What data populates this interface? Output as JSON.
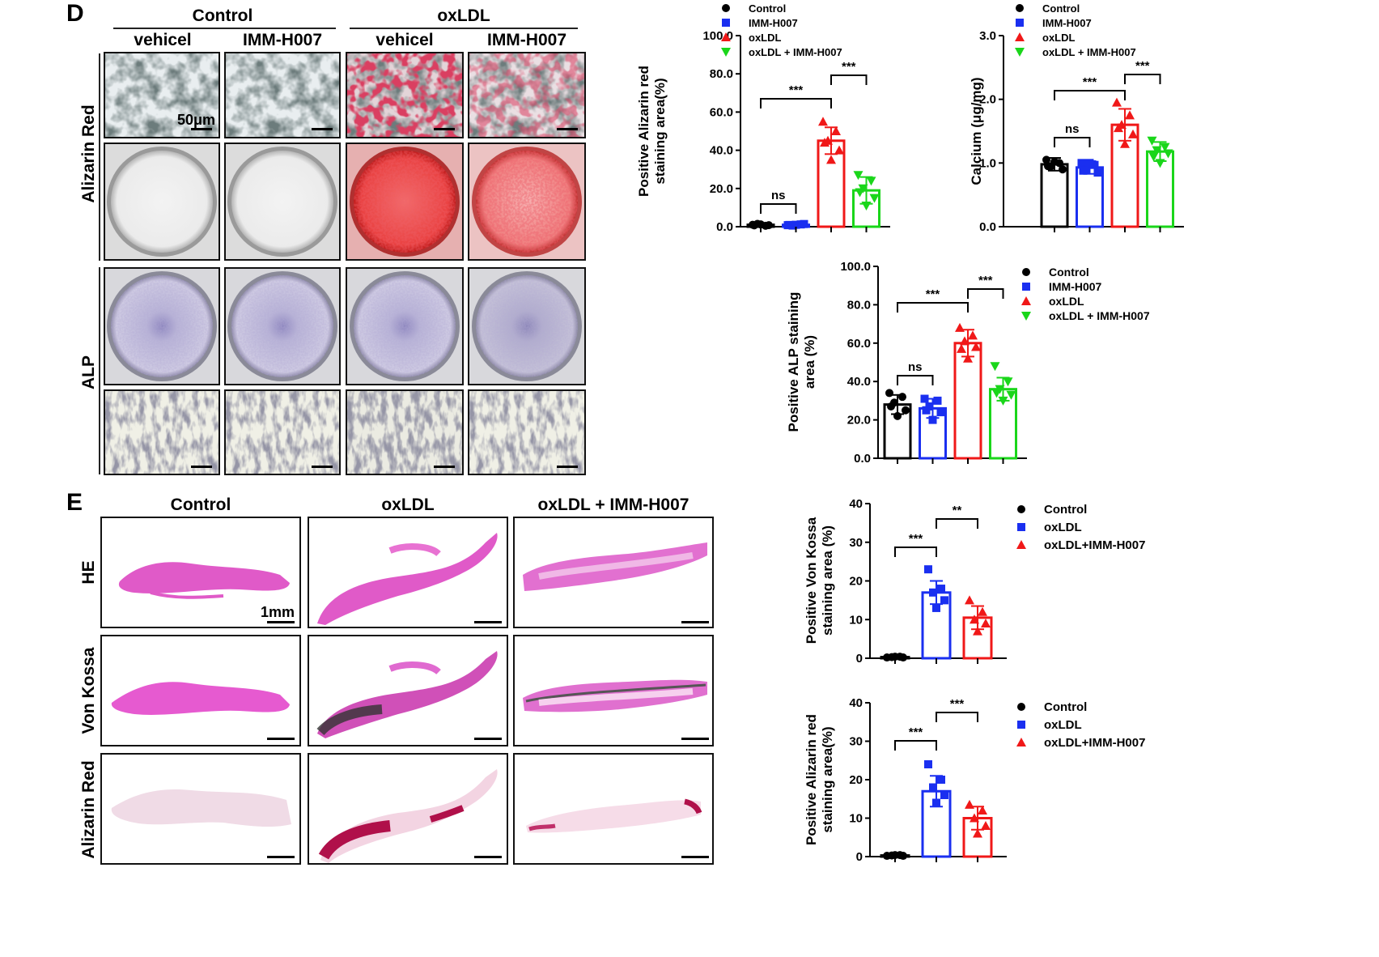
{
  "panel_d": {
    "letter": "D",
    "group_headers": [
      "Control",
      "oxLDL"
    ],
    "column_headers": [
      "vehicel",
      "IMM-H007",
      "vehicel",
      "IMM-H007"
    ],
    "row_labels": [
      "Alizarin Red",
      "ALP"
    ],
    "scale_bar": "50μm"
  },
  "panel_e": {
    "letter": "E",
    "column_headers": [
      "Control",
      "oxLDL",
      "oxLDL + IMM-H007"
    ],
    "row_labels": [
      "HE",
      "Von Kossa",
      "Alizarin Red"
    ],
    "scale_bar": "1mm"
  },
  "colors": {
    "black": "#000000",
    "blue": "#1a2ff0",
    "red": "#f01818",
    "green": "#1ad61a"
  },
  "chart_data": [
    {
      "id": "alizarin_cells",
      "type": "bar",
      "ylabel": [
        "Positive Alizarin red",
        "staining area(%)"
      ],
      "ylim": [
        0,
        100
      ],
      "yticks": [
        "0.0",
        "20.0",
        "40.0",
        "60.0",
        "80.0",
        "100.0"
      ],
      "series": [
        {
          "name": "Control",
          "value": 1,
          "sd": 0.6,
          "points": [
            1,
            0.5,
            1.5,
            0.8,
            1.2,
            0.7
          ]
        },
        {
          "name": "IMM-H007",
          "value": 1,
          "sd": 0.6,
          "points": [
            0.8,
            1.2,
            0.6,
            1.4,
            1.0,
            0.9
          ]
        },
        {
          "name": "oxLDL",
          "value": 45,
          "sd": 7,
          "points": [
            55,
            50,
            45,
            40,
            35,
            44
          ]
        },
        {
          "name": "oxLDL + IMM-H007",
          "value": 19,
          "sd": 7,
          "points": [
            27,
            24,
            20,
            15,
            11,
            18
          ]
        }
      ],
      "annotations": [
        "ns",
        "***",
        "***"
      ]
    },
    {
      "id": "calcium",
      "type": "bar",
      "ylabel": [
        "Calcium (μg/mg)"
      ],
      "ylim": [
        0,
        3
      ],
      "yticks": [
        "0.0",
        "1.0",
        "2.0",
        "3.0"
      ],
      "series": [
        {
          "name": "Control",
          "value": 0.98,
          "sd": 0.1,
          "points": [
            1.05,
            1.0,
            0.95,
            0.9,
            1.02,
            0.95
          ]
        },
        {
          "name": "IMM-H007",
          "value": 0.93,
          "sd": 0.1,
          "points": [
            1.0,
            0.97,
            0.9,
            0.85,
            1.0,
            0.88
          ]
        },
        {
          "name": "oxLDL",
          "value": 1.6,
          "sd": 0.25,
          "points": [
            1.95,
            1.75,
            1.6,
            1.45,
            1.3,
            1.55
          ]
        },
        {
          "name": "oxLDL + IMM-H007",
          "value": 1.18,
          "sd": 0.15,
          "points": [
            1.35,
            1.25,
            1.2,
            1.15,
            1.0,
            1.1
          ]
        }
      ],
      "annotations": [
        "ns",
        "***",
        "***"
      ]
    },
    {
      "id": "alp",
      "type": "bar",
      "ylabel": [
        "Positive ALP staining",
        "area (%)"
      ],
      "ylim": [
        0,
        100
      ],
      "yticks": [
        "0.0",
        "20.0",
        "40.0",
        "60.0",
        "80.0",
        "100.0"
      ],
      "series": [
        {
          "name": "Control",
          "value": 28,
          "sd": 5,
          "points": [
            34,
            32,
            29,
            25,
            22,
            27
          ]
        },
        {
          "name": "IMM-H007",
          "value": 26,
          "sd": 5,
          "points": [
            31,
            30,
            27,
            24,
            20,
            25
          ]
        },
        {
          "name": "oxLDL",
          "value": 60,
          "sd": 7,
          "points": [
            68,
            64,
            61,
            58,
            52,
            57
          ]
        },
        {
          "name": "oxLDL + IMM-H007",
          "value": 36,
          "sd": 6,
          "points": [
            48,
            40,
            36,
            33,
            30,
            34
          ]
        }
      ],
      "annotations": [
        "ns",
        "***",
        "***"
      ]
    },
    {
      "id": "vonkossa",
      "type": "bar",
      "ylabel": [
        "Positive Von Kossa",
        "staining area (%)"
      ],
      "ylim": [
        0,
        40
      ],
      "yticks": [
        "0",
        "10",
        "20",
        "30",
        "40"
      ],
      "series": [
        {
          "name": "Control",
          "value": 0.3,
          "sd": 0.2,
          "points": [
            0.2,
            0.4,
            0.3,
            0.2,
            0.4
          ]
        },
        {
          "name": "oxLDL",
          "value": 17,
          "sd": 3,
          "points": [
            23,
            18,
            17,
            15,
            13
          ]
        },
        {
          "name": "oxLDL+IMM-H007",
          "value": 10.5,
          "sd": 3,
          "points": [
            15,
            12,
            10,
            9,
            7
          ]
        }
      ],
      "annotations": [
        "***",
        "**"
      ]
    },
    {
      "id": "alizarin_tissue",
      "type": "bar",
      "ylabel": [
        "Positive Alizarin red",
        "staining area(%)"
      ],
      "ylim": [
        0,
        40
      ],
      "yticks": [
        "0",
        "10",
        "20",
        "30",
        "40"
      ],
      "series": [
        {
          "name": "Control",
          "value": 0.3,
          "sd": 0.2,
          "points": [
            0.2,
            0.4,
            0.3,
            0.2,
            0.4
          ]
        },
        {
          "name": "oxLDL",
          "value": 17,
          "sd": 4,
          "points": [
            24,
            20,
            18,
            16,
            14
          ]
        },
        {
          "name": "oxLDL+IMM-H007",
          "value": 10,
          "sd": 3,
          "points": [
            13.5,
            12,
            10,
            8,
            6
          ]
        }
      ],
      "annotations": [
        "***",
        "***"
      ]
    }
  ]
}
